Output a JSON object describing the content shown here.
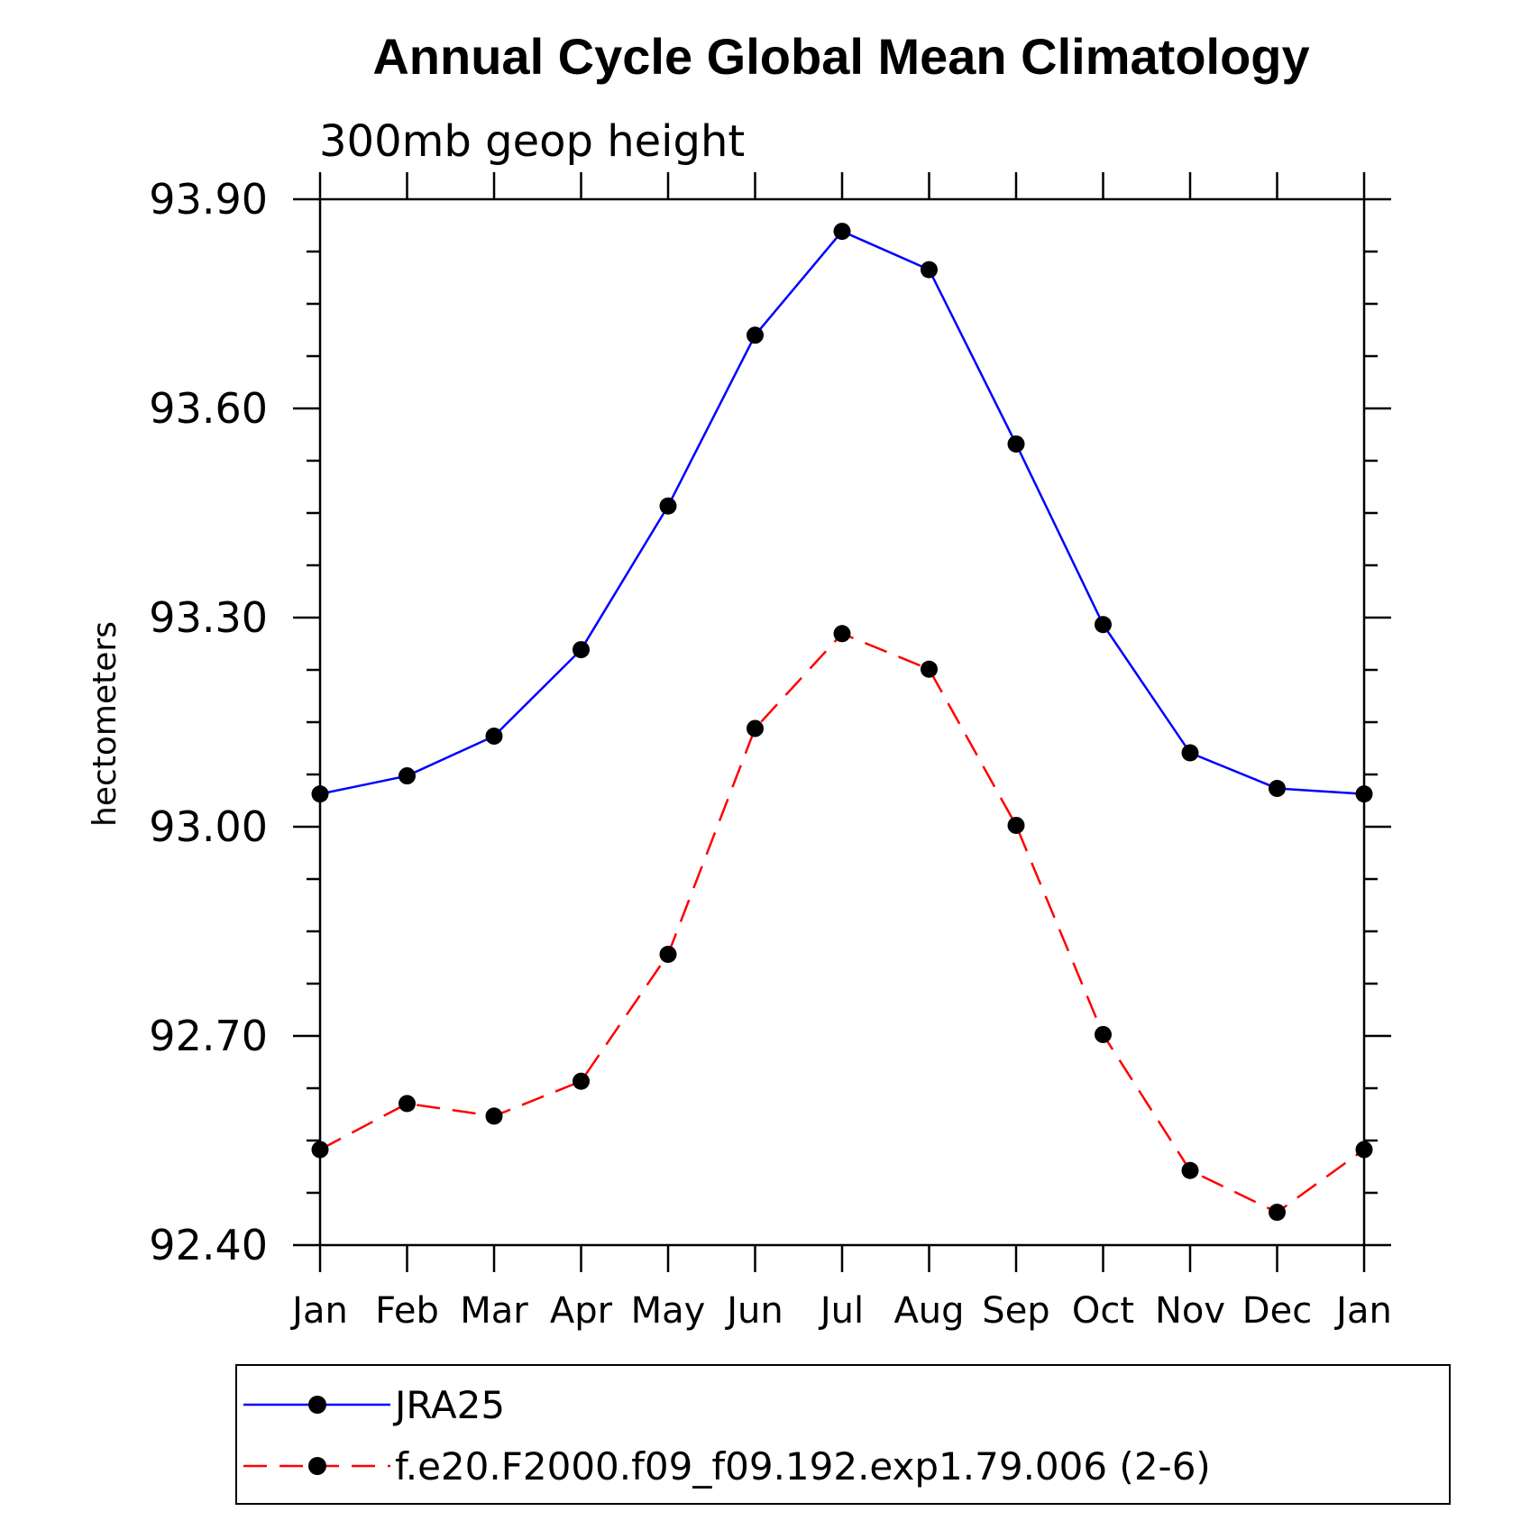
{
  "chart_data": {
    "type": "line",
    "title": "Annual Cycle Global Mean Climatology",
    "subtitle": "300mb geop height",
    "xlabel": "",
    "ylabel": "hectometers",
    "categories": [
      "Jan",
      "Feb",
      "Mar",
      "Apr",
      "May",
      "Jun",
      "Jul",
      "Aug",
      "Sep",
      "Oct",
      "Nov",
      "Dec",
      "Jan"
    ],
    "ylim": [
      92.4,
      93.9
    ],
    "yticks": [
      "93.90",
      "93.60",
      "93.30",
      "93.00",
      "92.70",
      "92.40"
    ],
    "ytick_values": [
      93.9,
      93.6,
      93.3,
      93.0,
      92.7,
      92.4
    ],
    "grid": false,
    "legend_position": "bottom",
    "series": [
      {
        "name": "JRA25",
        "color": "#0000ff",
        "style": "solid",
        "values": [
          93.047,
          93.073,
          93.13,
          93.254,
          93.46,
          93.705,
          93.854,
          93.799,
          93.549,
          93.29,
          93.106,
          93.055,
          93.047
        ]
      },
      {
        "name": "f.e20.F2000.f09_f09.192.exp1.79.006 (2-6)",
        "color": "#ff0000",
        "style": "dashed",
        "values": [
          92.537,
          92.603,
          92.585,
          92.635,
          92.817,
          93.141,
          93.277,
          93.226,
          93.002,
          92.702,
          92.507,
          92.447,
          92.537
        ]
      }
    ]
  }
}
